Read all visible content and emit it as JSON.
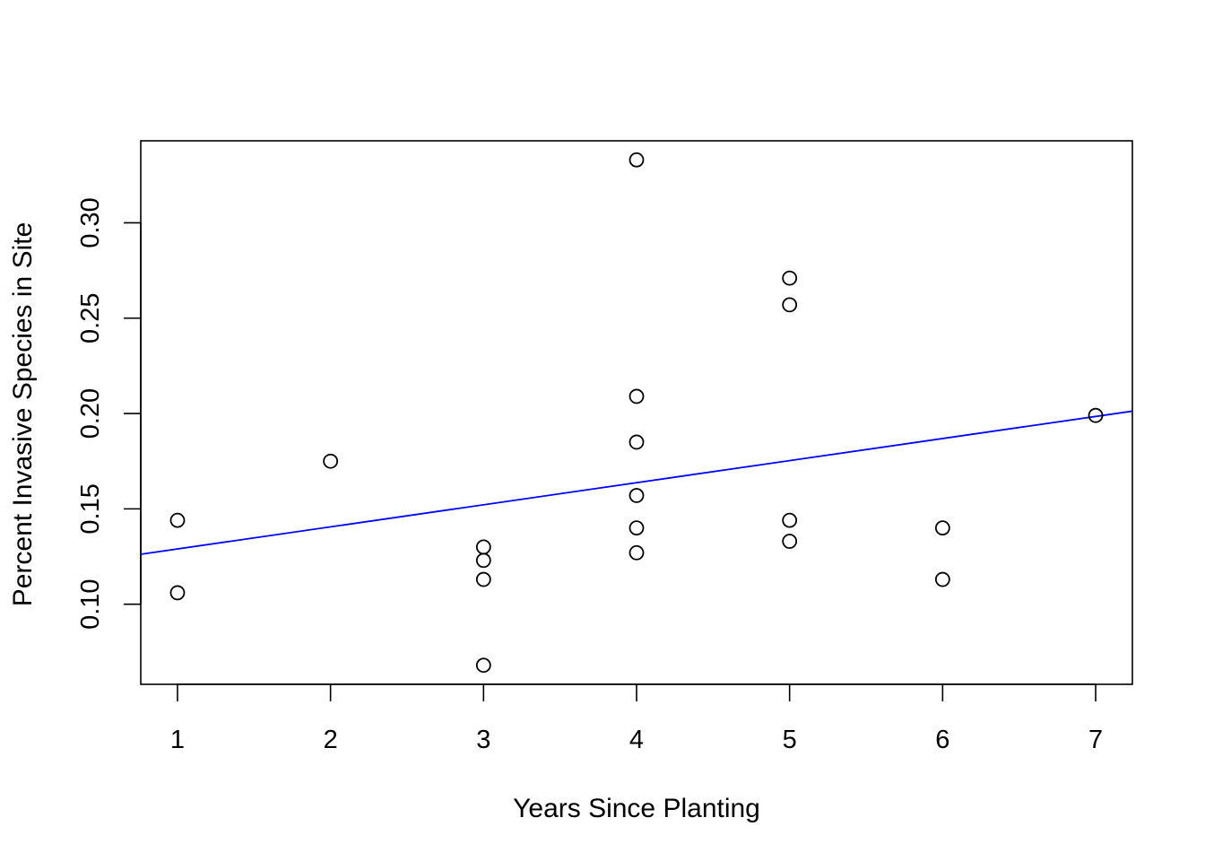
{
  "chart_data": {
    "type": "scatter",
    "title": "",
    "xlabel": "Years Since Planting",
    "ylabel": "Percent Invasive Species in Site",
    "xlim": [
      0.76,
      7.24
    ],
    "ylim": [
      0.058,
      0.343
    ],
    "xticks": [
      1,
      2,
      3,
      4,
      5,
      6,
      7
    ],
    "xtick_labels": [
      "1",
      "2",
      "3",
      "4",
      "5",
      "6",
      "7"
    ],
    "yticks": [
      0.1,
      0.15,
      0.2,
      0.25,
      0.3
    ],
    "ytick_labels": [
      "0.10",
      "0.15",
      "0.20",
      "0.25",
      "0.30"
    ],
    "grid": false,
    "legend": "none",
    "marker": "open-circle",
    "marker_color": "#000000",
    "points": [
      {
        "x": 1,
        "y": 0.144
      },
      {
        "x": 1,
        "y": 0.106
      },
      {
        "x": 2,
        "y": 0.175
      },
      {
        "x": 3,
        "y": 0.13
      },
      {
        "x": 3,
        "y": 0.123
      },
      {
        "x": 3,
        "y": 0.113
      },
      {
        "x": 3,
        "y": 0.068
      },
      {
        "x": 4,
        "y": 0.333
      },
      {
        "x": 4,
        "y": 0.209
      },
      {
        "x": 4,
        "y": 0.185
      },
      {
        "x": 4,
        "y": 0.157
      },
      {
        "x": 4,
        "y": 0.14
      },
      {
        "x": 4,
        "y": 0.127
      },
      {
        "x": 5,
        "y": 0.271
      },
      {
        "x": 5,
        "y": 0.257
      },
      {
        "x": 5,
        "y": 0.144
      },
      {
        "x": 5,
        "y": 0.133
      },
      {
        "x": 6,
        "y": 0.14
      },
      {
        "x": 6,
        "y": 0.113
      },
      {
        "x": 7,
        "y": 0.199
      }
    ],
    "regression_line": {
      "color": "#0000ff",
      "intercept": 0.1174,
      "slope": 0.01158
    }
  }
}
